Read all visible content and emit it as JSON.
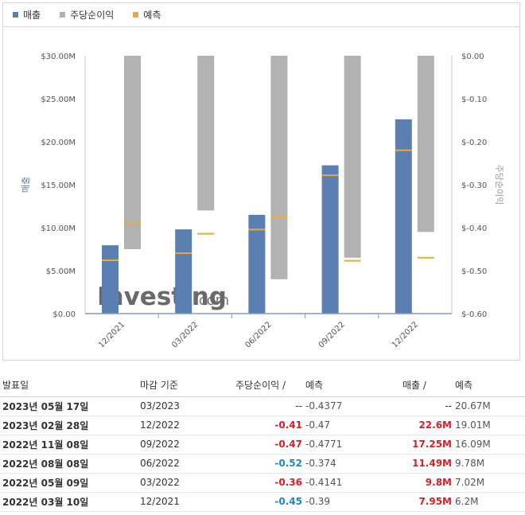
{
  "legend": {
    "revenue": {
      "label": "매출",
      "color": "#5b7fb1"
    },
    "eps": {
      "label": "주당순이익",
      "color": "#b2b2b2"
    },
    "forecast": {
      "label": "예측",
      "color": "#f0a830"
    }
  },
  "chart_data": {
    "type": "bar",
    "categories": [
      "12/2021",
      "03/2022",
      "06/2022",
      "09/2022",
      "12/2022"
    ],
    "left_axis": {
      "label": "매출",
      "range": [
        0,
        30
      ],
      "tick_values": [
        0,
        5,
        10,
        15,
        20,
        25,
        30
      ],
      "tick_labels": [
        "$0.00",
        "$5.00M",
        "$10.00M",
        "$15.00M",
        "$20.00M",
        "$25.00M",
        "$30.00M"
      ]
    },
    "right_axis": {
      "label": "주당순이익",
      "range": [
        -0.6,
        0
      ],
      "tick_values": [
        0,
        -0.1,
        -0.2,
        -0.3,
        -0.4,
        -0.5,
        -0.6
      ],
      "tick_labels": [
        "$0.00",
        "$-0.10",
        "$-0.20",
        "$-0.30",
        "$-0.40",
        "$-0.50",
        "$-0.60"
      ]
    },
    "series": [
      {
        "name": "매출",
        "axis": "left",
        "values": [
          7.95,
          9.8,
          11.49,
          17.25,
          22.6
        ],
        "forecast": [
          6.2,
          7.02,
          9.78,
          16.09,
          19.01
        ]
      },
      {
        "name": "주당순이익",
        "axis": "right",
        "values": [
          -0.45,
          -0.36,
          -0.52,
          -0.47,
          -0.41
        ],
        "forecast": [
          -0.39,
          -0.4141,
          -0.374,
          -0.4771,
          -0.47
        ]
      }
    ],
    "watermark": {
      "brand": "Investing",
      "suffix": ".com"
    }
  },
  "table": {
    "headers": {
      "date": "발표일",
      "period": "마감 기준",
      "eps": "주당순이익 /",
      "eps_forecast": "예측",
      "revenue": "매출 /",
      "revenue_forecast": "예측"
    },
    "rows": [
      {
        "date": "2023년 05월 17일",
        "period": "03/2023",
        "eps": "--",
        "eps_class": "neutral",
        "eps_forecast": "-0.4377",
        "revenue": "--",
        "revenue_class": "neutral",
        "revenue_forecast": "20.67M"
      },
      {
        "date": "2023년 02월 28일",
        "period": "12/2022",
        "eps": "-0.41",
        "eps_class": "neg",
        "eps_forecast": "-0.47",
        "revenue": "22.6M",
        "revenue_class": "neg",
        "revenue_forecast": "19.01M"
      },
      {
        "date": "2022년 11월 08일",
        "period": "09/2022",
        "eps": "-0.47",
        "eps_class": "neg",
        "eps_forecast": "-0.4771",
        "revenue": "17.25M",
        "revenue_class": "neg",
        "revenue_forecast": "16.09M"
      },
      {
        "date": "2022년 08월 08일",
        "period": "06/2022",
        "eps": "-0.52",
        "eps_class": "pos",
        "eps_forecast": "-0.374",
        "revenue": "11.49M",
        "revenue_class": "neg",
        "revenue_forecast": "9.78M"
      },
      {
        "date": "2022년 05월 09일",
        "period": "03/2022",
        "eps": "-0.36",
        "eps_class": "neg",
        "eps_forecast": "-0.4141",
        "revenue": "9.8M",
        "revenue_class": "neg",
        "revenue_forecast": "7.02M"
      },
      {
        "date": "2022년 03월 10일",
        "period": "12/2021",
        "eps": "-0.45",
        "eps_class": "pos",
        "eps_forecast": "-0.39",
        "revenue": "7.95M",
        "revenue_class": "neg",
        "revenue_forecast": "6.2M"
      }
    ]
  }
}
